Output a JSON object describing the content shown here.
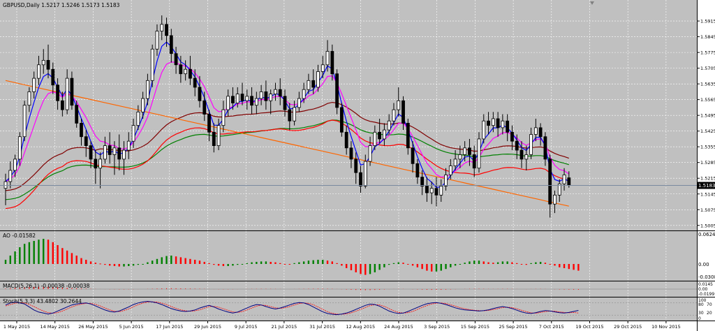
{
  "chart_header": {
    "symbol_line": "GBPUSD,Daily  1.5217 1.5246 1.5173 1.5183"
  },
  "colors": {
    "background": "#c0c0c0",
    "panel_bg": "#c0c0c0",
    "grid": "#ffffff",
    "candle": "#000000",
    "bull_body": "#ffffff",
    "ma_fast": "#0000ff",
    "ma_slow_magenta": "#ff00ff",
    "ma_red": "#ff0000",
    "ma_green": "#008000",
    "ma_maroon": "#800000",
    "ma_orange": "#ff6600",
    "ao_up": "#008000",
    "ao_down": "#ff0000",
    "macd_signal": "#ff0000",
    "stoch_main": "#000080",
    "stoch_signal": "#ff0000"
  },
  "price_axis": {
    "ticks": [
      "1.5915",
      "1.5845",
      "1.5775",
      "1.5705",
      "1.5635",
      "1.5565",
      "1.5495",
      "1.5425",
      "1.5355",
      "1.5285",
      "1.5215",
      "1.5145",
      "1.5075",
      "1.5005"
    ],
    "current_price_label": "1.5183",
    "min": 1.4995,
    "max": 1.5965
  },
  "x_axis": {
    "labels": [
      "1 May 2015",
      "14 May 2015",
      "26 May 2015",
      "5 Jun 2015",
      "17 Jun 2015",
      "29 Jun 2015",
      "9 Jul 2015",
      "21 Jul 2015",
      "31 Jul 2015",
      "12 Aug 2015",
      "24 Aug 2015",
      "3 Sep 2015",
      "15 Sep 2015",
      "25 Sep 2015",
      "7 Oct 2015",
      "19 Oct 2015",
      "29 Oct 2015",
      "10 Nov 2015"
    ]
  },
  "indicators": {
    "ao": {
      "label": "AO -0.01582",
      "axis": [
        "0.0624",
        "0.00",
        "-0.0308"
      ]
    },
    "macd": {
      "label": "MACD(5,26,1) -0.00038 -0.00038",
      "axis": [
        "0.0145",
        "0.00",
        "-0.0199"
      ]
    },
    "stoch": {
      "label": "Stoch(5,3,3) 43.4802 30.2644",
      "axis": [
        "100",
        "80",
        "70",
        "30",
        "20",
        "0"
      ]
    }
  },
  "chart_data": {
    "type": "candlestick",
    "title": "GBPUSD,Daily",
    "ylim": [
      1.4995,
      1.5965
    ],
    "candles": [
      {
        "o": 1.517,
        "h": 1.5235,
        "c": 1.52,
        "l": 1.5095
      },
      {
        "o": 1.52,
        "h": 1.529,
        "c": 1.525,
        "l": 1.517
      },
      {
        "o": 1.525,
        "h": 1.532,
        "c": 1.53,
        "l": 1.522
      },
      {
        "o": 1.53,
        "h": 1.542,
        "c": 1.54,
        "l": 1.527
      },
      {
        "o": 1.54,
        "h": 1.556,
        "c": 1.554,
        "l": 1.538
      },
      {
        "o": 1.554,
        "h": 1.562,
        "c": 1.56,
        "l": 1.551
      },
      {
        "o": 1.56,
        "h": 1.569,
        "c": 1.566,
        "l": 1.557
      },
      {
        "o": 1.566,
        "h": 1.576,
        "c": 1.572,
        "l": 1.563
      },
      {
        "o": 1.572,
        "h": 1.579,
        "c": 1.574,
        "l": 1.568
      },
      {
        "o": 1.574,
        "h": 1.581,
        "c": 1.57,
        "l": 1.566
      },
      {
        "o": 1.57,
        "h": 1.573,
        "c": 1.563,
        "l": 1.559
      },
      {
        "o": 1.563,
        "h": 1.566,
        "c": 1.556,
        "l": 1.552
      },
      {
        "o": 1.556,
        "h": 1.56,
        "c": 1.552,
        "l": 1.549
      },
      {
        "o": 1.552,
        "h": 1.57,
        "c": 1.566,
        "l": 1.55
      },
      {
        "o": 1.566,
        "h": 1.569,
        "c": 1.554,
        "l": 1.552
      },
      {
        "o": 1.554,
        "h": 1.556,
        "c": 1.546,
        "l": 1.544
      },
      {
        "o": 1.546,
        "h": 1.548,
        "c": 1.54,
        "l": 1.536
      },
      {
        "o": 1.54,
        "h": 1.543,
        "c": 1.536,
        "l": 1.531
      },
      {
        "o": 1.536,
        "h": 1.538,
        "c": 1.53,
        "l": 1.526
      },
      {
        "o": 1.53,
        "h": 1.534,
        "c": 1.526,
        "l": 1.519
      },
      {
        "o": 1.526,
        "h": 1.533,
        "c": 1.53,
        "l": 1.517
      },
      {
        "o": 1.53,
        "h": 1.54,
        "c": 1.536,
        "l": 1.528
      },
      {
        "o": 1.536,
        "h": 1.542,
        "c": 1.532,
        "l": 1.528
      },
      {
        "o": 1.532,
        "h": 1.538,
        "c": 1.535,
        "l": 1.523
      },
      {
        "o": 1.535,
        "h": 1.541,
        "c": 1.53,
        "l": 1.525
      },
      {
        "o": 1.53,
        "h": 1.538,
        "c": 1.534,
        "l": 1.523
      },
      {
        "o": 1.534,
        "h": 1.542,
        "c": 1.538,
        "l": 1.53
      },
      {
        "o": 1.538,
        "h": 1.548,
        "c": 1.545,
        "l": 1.535
      },
      {
        "o": 1.545,
        "h": 1.554,
        "c": 1.551,
        "l": 1.543
      },
      {
        "o": 1.551,
        "h": 1.56,
        "c": 1.557,
        "l": 1.548
      },
      {
        "o": 1.557,
        "h": 1.568,
        "c": 1.565,
        "l": 1.554
      },
      {
        "o": 1.565,
        "h": 1.581,
        "c": 1.579,
        "l": 1.562
      },
      {
        "o": 1.579,
        "h": 1.59,
        "c": 1.587,
        "l": 1.576
      },
      {
        "o": 1.587,
        "h": 1.594,
        "c": 1.59,
        "l": 1.583
      },
      {
        "o": 1.59,
        "h": 1.593,
        "c": 1.585,
        "l": 1.58
      },
      {
        "o": 1.585,
        "h": 1.588,
        "c": 1.577,
        "l": 1.573
      },
      {
        "o": 1.577,
        "h": 1.58,
        "c": 1.572,
        "l": 1.568
      },
      {
        "o": 1.572,
        "h": 1.576,
        "c": 1.568,
        "l": 1.564
      },
      {
        "o": 1.568,
        "h": 1.574,
        "c": 1.57,
        "l": 1.565
      },
      {
        "o": 1.57,
        "h": 1.576,
        "c": 1.566,
        "l": 1.563
      },
      {
        "o": 1.566,
        "h": 1.57,
        "c": 1.562,
        "l": 1.558
      },
      {
        "o": 1.562,
        "h": 1.567,
        "c": 1.556,
        "l": 1.553
      },
      {
        "o": 1.556,
        "h": 1.56,
        "c": 1.55,
        "l": 1.547
      },
      {
        "o": 1.55,
        "h": 1.552,
        "c": 1.542,
        "l": 1.538
      },
      {
        "o": 1.542,
        "h": 1.546,
        "c": 1.536,
        "l": 1.533
      },
      {
        "o": 1.536,
        "h": 1.548,
        "c": 1.545,
        "l": 1.534
      },
      {
        "o": 1.545,
        "h": 1.556,
        "c": 1.552,
        "l": 1.542
      },
      {
        "o": 1.552,
        "h": 1.561,
        "c": 1.558,
        "l": 1.549
      },
      {
        "o": 1.558,
        "h": 1.562,
        "c": 1.555,
        "l": 1.552
      },
      {
        "o": 1.555,
        "h": 1.562,
        "c": 1.559,
        "l": 1.553
      },
      {
        "o": 1.559,
        "h": 1.564,
        "c": 1.556,
        "l": 1.554
      },
      {
        "o": 1.556,
        "h": 1.561,
        "c": 1.558,
        "l": 1.552
      },
      {
        "o": 1.558,
        "h": 1.562,
        "c": 1.554,
        "l": 1.55
      },
      {
        "o": 1.554,
        "h": 1.56,
        "c": 1.557,
        "l": 1.55
      },
      {
        "o": 1.557,
        "h": 1.563,
        "c": 1.56,
        "l": 1.554
      },
      {
        "o": 1.56,
        "h": 1.565,
        "c": 1.556,
        "l": 1.552
      },
      {
        "o": 1.556,
        "h": 1.561,
        "c": 1.559,
        "l": 1.55
      },
      {
        "o": 1.559,
        "h": 1.564,
        "c": 1.561,
        "l": 1.556
      },
      {
        "o": 1.561,
        "h": 1.566,
        "c": 1.558,
        "l": 1.554
      },
      {
        "o": 1.558,
        "h": 1.561,
        "c": 1.552,
        "l": 1.549
      },
      {
        "o": 1.552,
        "h": 1.555,
        "c": 1.547,
        "l": 1.543
      },
      {
        "o": 1.547,
        "h": 1.556,
        "c": 1.553,
        "l": 1.545
      },
      {
        "o": 1.553,
        "h": 1.56,
        "c": 1.557,
        "l": 1.551
      },
      {
        "o": 1.557,
        "h": 1.564,
        "c": 1.561,
        "l": 1.555
      },
      {
        "o": 1.561,
        "h": 1.568,
        "c": 1.565,
        "l": 1.559
      },
      {
        "o": 1.565,
        "h": 1.57,
        "c": 1.562,
        "l": 1.559
      },
      {
        "o": 1.562,
        "h": 1.572,
        "c": 1.569,
        "l": 1.56
      },
      {
        "o": 1.569,
        "h": 1.576,
        "c": 1.572,
        "l": 1.566
      },
      {
        "o": 1.572,
        "h": 1.583,
        "c": 1.578,
        "l": 1.569
      },
      {
        "o": 1.578,
        "h": 1.581,
        "c": 1.568,
        "l": 1.565
      },
      {
        "o": 1.568,
        "h": 1.57,
        "c": 1.553,
        "l": 1.55
      },
      {
        "o": 1.553,
        "h": 1.555,
        "c": 1.542,
        "l": 1.54
      },
      {
        "o": 1.542,
        "h": 1.545,
        "c": 1.535,
        "l": 1.532
      },
      {
        "o": 1.535,
        "h": 1.538,
        "c": 1.53,
        "l": 1.526
      },
      {
        "o": 1.53,
        "h": 1.533,
        "c": 1.524,
        "l": 1.519
      },
      {
        "o": 1.524,
        "h": 1.527,
        "c": 1.518,
        "l": 1.515
      },
      {
        "o": 1.518,
        "h": 1.532,
        "c": 1.529,
        "l": 1.517
      },
      {
        "o": 1.529,
        "h": 1.54,
        "c": 1.536,
        "l": 1.527
      },
      {
        "o": 1.536,
        "h": 1.545,
        "c": 1.542,
        "l": 1.534
      },
      {
        "o": 1.542,
        "h": 1.548,
        "c": 1.539,
        "l": 1.537
      },
      {
        "o": 1.539,
        "h": 1.546,
        "c": 1.543,
        "l": 1.536
      },
      {
        "o": 1.543,
        "h": 1.55,
        "c": 1.547,
        "l": 1.541
      },
      {
        "o": 1.547,
        "h": 1.555,
        "c": 1.552,
        "l": 1.545
      },
      {
        "o": 1.552,
        "h": 1.562,
        "c": 1.556,
        "l": 1.549
      },
      {
        "o": 1.556,
        "h": 1.558,
        "c": 1.546,
        "l": 1.543
      },
      {
        "o": 1.546,
        "h": 1.548,
        "c": 1.535,
        "l": 1.532
      },
      {
        "o": 1.535,
        "h": 1.538,
        "c": 1.528,
        "l": 1.524
      },
      {
        "o": 1.528,
        "h": 1.53,
        "c": 1.522,
        "l": 1.519
      },
      {
        "o": 1.522,
        "h": 1.525,
        "c": 1.518,
        "l": 1.514
      },
      {
        "o": 1.518,
        "h": 1.522,
        "c": 1.515,
        "l": 1.511
      },
      {
        "o": 1.515,
        "h": 1.52,
        "c": 1.517,
        "l": 1.51
      },
      {
        "o": 1.517,
        "h": 1.522,
        "c": 1.514,
        "l": 1.509
      },
      {
        "o": 1.514,
        "h": 1.521,
        "c": 1.518,
        "l": 1.511
      },
      {
        "o": 1.518,
        "h": 1.526,
        "c": 1.523,
        "l": 1.516
      },
      {
        "o": 1.523,
        "h": 1.53,
        "c": 1.527,
        "l": 1.521
      },
      {
        "o": 1.527,
        "h": 1.534,
        "c": 1.53,
        "l": 1.525
      },
      {
        "o": 1.53,
        "h": 1.536,
        "c": 1.532,
        "l": 1.526
      },
      {
        "o": 1.532,
        "h": 1.538,
        "c": 1.535,
        "l": 1.529
      },
      {
        "o": 1.535,
        "h": 1.539,
        "c": 1.532,
        "l": 1.527
      },
      {
        "o": 1.532,
        "h": 1.536,
        "c": 1.526,
        "l": 1.522
      },
      {
        "o": 1.526,
        "h": 1.542,
        "c": 1.539,
        "l": 1.524
      },
      {
        "o": 1.539,
        "h": 1.55,
        "c": 1.547,
        "l": 1.537
      },
      {
        "o": 1.547,
        "h": 1.551,
        "c": 1.545,
        "l": 1.541
      },
      {
        "o": 1.545,
        "h": 1.551,
        "c": 1.548,
        "l": 1.542
      },
      {
        "o": 1.548,
        "h": 1.551,
        "c": 1.544,
        "l": 1.54
      },
      {
        "o": 1.544,
        "h": 1.55,
        "c": 1.547,
        "l": 1.541
      },
      {
        "o": 1.547,
        "h": 1.55,
        "c": 1.542,
        "l": 1.538
      },
      {
        "o": 1.542,
        "h": 1.545,
        "c": 1.538,
        "l": 1.534
      },
      {
        "o": 1.538,
        "h": 1.541,
        "c": 1.534,
        "l": 1.53
      },
      {
        "o": 1.534,
        "h": 1.538,
        "c": 1.53,
        "l": 1.526
      },
      {
        "o": 1.53,
        "h": 1.536,
        "c": 1.532,
        "l": 1.525
      },
      {
        "o": 1.532,
        "h": 1.544,
        "c": 1.541,
        "l": 1.53
      },
      {
        "o": 1.541,
        "h": 1.548,
        "c": 1.544,
        "l": 1.538
      },
      {
        "o": 1.544,
        "h": 1.546,
        "c": 1.54,
        "l": 1.536
      },
      {
        "o": 1.54,
        "h": 1.542,
        "c": 1.53,
        "l": 1.527
      },
      {
        "o": 1.53,
        "h": 1.532,
        "c": 1.51,
        "l": 1.504
      },
      {
        "o": 1.51,
        "h": 1.516,
        "c": 1.514,
        "l": 1.506
      },
      {
        "o": 1.514,
        "h": 1.521,
        "c": 1.519,
        "l": 1.511
      },
      {
        "o": 1.519,
        "h": 1.526,
        "c": 1.523,
        "l": 1.516
      },
      {
        "o": 1.5217,
        "h": 1.5246,
        "c": 1.5183,
        "l": 1.5173
      }
    ],
    "moving_averages": [
      {
        "name": "blue",
        "values_from": "fast"
      },
      {
        "name": "magenta",
        "values_from": "slow"
      }
    ],
    "horizontal_levels": [],
    "ao_values": [
      0.01,
      0.02,
      0.03,
      0.04,
      0.048,
      0.052,
      0.055,
      0.058,
      0.06,
      0.058,
      0.052,
      0.045,
      0.038,
      0.032,
      0.026,
      0.02,
      0.014,
      0.01,
      0.006,
      0.003,
      0.001,
      -0.002,
      -0.004,
      -0.005,
      -0.006,
      -0.006,
      -0.005,
      -0.004,
      -0.002,
      0.0,
      0.004,
      0.008,
      0.012,
      0.016,
      0.019,
      0.02,
      0.018,
      0.016,
      0.014,
      0.012,
      0.01,
      0.008,
      0.005,
      0.002,
      -0.002,
      -0.004,
      -0.005,
      -0.005,
      -0.004,
      -0.002,
      0.0,
      0.002,
      0.004,
      0.005,
      0.006,
      0.006,
      0.005,
      0.004,
      0.002,
      0.0,
      -0.001,
      0.002,
      0.004,
      0.006,
      0.008,
      0.009,
      0.01,
      0.01,
      0.008,
      0.006,
      0.002,
      -0.004,
      -0.01,
      -0.015,
      -0.02,
      -0.024,
      -0.026,
      -0.024,
      -0.02,
      -0.014,
      -0.008,
      -0.002,
      0.002,
      0.004,
      0.003,
      0.0,
      -0.004,
      -0.008,
      -0.012,
      -0.016,
      -0.018,
      -0.018,
      -0.016,
      -0.012,
      -0.008,
      -0.004,
      0.0,
      0.003,
      0.006,
      0.008,
      0.008,
      0.006,
      0.004,
      0.003,
      0.004,
      0.006,
      0.006,
      0.004,
      0.002,
      0.0,
      -0.002,
      0.002,
      0.004,
      0.005,
      0.003,
      0.0,
      -0.004,
      -0.008,
      -0.01,
      -0.012,
      -0.014,
      -0.016
    ],
    "stoch_main": [
      70,
      80,
      85,
      80,
      75,
      60,
      45,
      35,
      30,
      25,
      30,
      40,
      50,
      60,
      70,
      75,
      78,
      80,
      75,
      65,
      55,
      45,
      38,
      35,
      40,
      50,
      60,
      72,
      80,
      85,
      88,
      85,
      80,
      72,
      62,
      52,
      45,
      40,
      38,
      40,
      45,
      55,
      62,
      68,
      60,
      50,
      42,
      35,
      30,
      35,
      45,
      55,
      65,
      72,
      70,
      62,
      55,
      50,
      55,
      62,
      70,
      78,
      82,
      80,
      72,
      60,
      48,
      36,
      28,
      24,
      22,
      25,
      30,
      38,
      48,
      58,
      68,
      74,
      72,
      64,
      52,
      40,
      32,
      28,
      30,
      38,
      48,
      58,
      68,
      76,
      80,
      82,
      78,
      72,
      64,
      56,
      50,
      46,
      44,
      42,
      40,
      42,
      46,
      52,
      58,
      62,
      58,
      52,
      44,
      36,
      30,
      28,
      32,
      38,
      42,
      40,
      36,
      32,
      30,
      33,
      38,
      43
    ],
    "stoch_signal": [
      65,
      72,
      78,
      82,
      80,
      72,
      62,
      50,
      40,
      32,
      29,
      32,
      40,
      50,
      60,
      68,
      74,
      78,
      78,
      73,
      65,
      55,
      46,
      39,
      37,
      42,
      50,
      61,
      71,
      79,
      84,
      86,
      84,
      79,
      72,
      62,
      53,
      46,
      41,
      39,
      41,
      46,
      54,
      62,
      63,
      59,
      51,
      43,
      36,
      33,
      37,
      45,
      55,
      64,
      69,
      68,
      62,
      56,
      53,
      56,
      62,
      70,
      77,
      80,
      78,
      71,
      60,
      48,
      37,
      29,
      25,
      24,
      26,
      31,
      39,
      48,
      58,
      67,
      71,
      70,
      63,
      52,
      41,
      33,
      30,
      32,
      38,
      48,
      58,
      67,
      75,
      79,
      80,
      77,
      71,
      64,
      57,
      51,
      47,
      44,
      42,
      41,
      43,
      47,
      52,
      57,
      59,
      57,
      51,
      44,
      37,
      31,
      29,
      33,
      37,
      40,
      39,
      36,
      33,
      31,
      33,
      30
    ]
  }
}
